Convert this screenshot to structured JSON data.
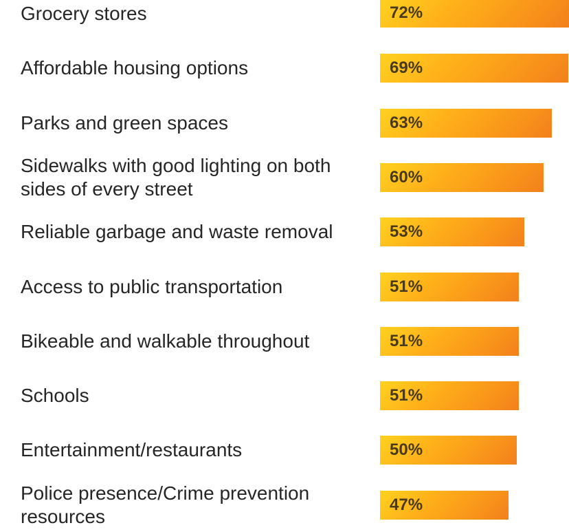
{
  "chart_data": {
    "type": "bar",
    "orientation": "horizontal",
    "categories": [
      "Grocery stores",
      "Affordable housing options",
      "Parks and green spaces",
      "Sidewalks with good lighting on both sides of every street",
      "Reliable garbage and waste removal",
      "Access to public transportation",
      "Bikeable and walkable throughout",
      "Schools",
      "Entertainment/restaurants",
      "Police presence/Crime prevention resources"
    ],
    "values": [
      72,
      69,
      63,
      60,
      53,
      51,
      51,
      51,
      50,
      47
    ],
    "value_labels": [
      "72%",
      "69%",
      "63%",
      "60%",
      "53%",
      "51%",
      "51%",
      "51%",
      "50%",
      "47%"
    ],
    "unit": "%",
    "grid": false,
    "legend": "none",
    "colors": {
      "bar_start": "#ffd21f",
      "bar_end": "#f2801c",
      "value_text": "#4a3a1a",
      "label_text": "#262626"
    }
  }
}
